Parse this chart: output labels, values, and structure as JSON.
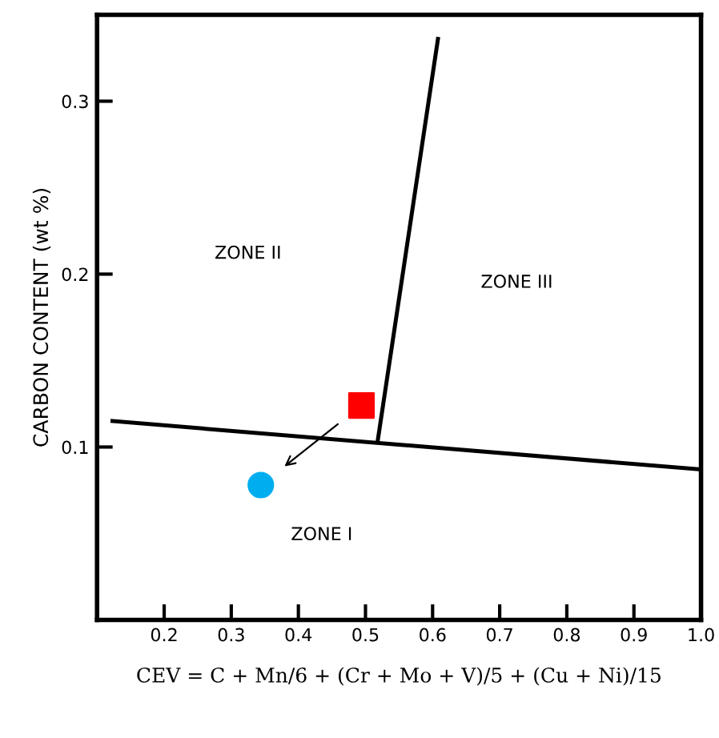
{
  "chart_data": {
    "type": "line",
    "ylabel": "CARBON CONTENT (wt %)",
    "xlabel": "CEV = C + Mn/6 + (Cr + Mo + V)/5 + (Cu + Ni)/15",
    "xlim": [
      0.1,
      1.0
    ],
    "ylim": [
      0.0,
      0.35
    ],
    "xticks": [
      0.2,
      0.3,
      0.4,
      0.5,
      0.6,
      0.7,
      0.8,
      0.9,
      {
        "value": 1.0,
        "label": "1.0"
      }
    ],
    "yticks": [
      0.1,
      0.2,
      0.3
    ],
    "grid": false,
    "legend": false,
    "series": [
      {
        "color": "#000000",
        "x": [
          0.123,
          1.0
        ],
        "values": [
          0.115,
          0.087
        ]
      },
      {
        "color": "#000000",
        "x": [
          0.518,
          0.608
        ],
        "values": [
          0.103,
          0.336
        ]
      },
      {
        "type": "scatter",
        "marker": "square",
        "color": "#ff0000",
        "x": [
          0.494
        ],
        "values": [
          0.124
        ]
      },
      {
        "type": "scatter",
        "marker": "circle",
        "color": "#00aeef",
        "x": [
          0.344
        ],
        "values": [
          0.078
        ]
      }
    ],
    "annotations": [
      "ZONE II",
      "ZONE III",
      "ZONE I"
    ]
  }
}
